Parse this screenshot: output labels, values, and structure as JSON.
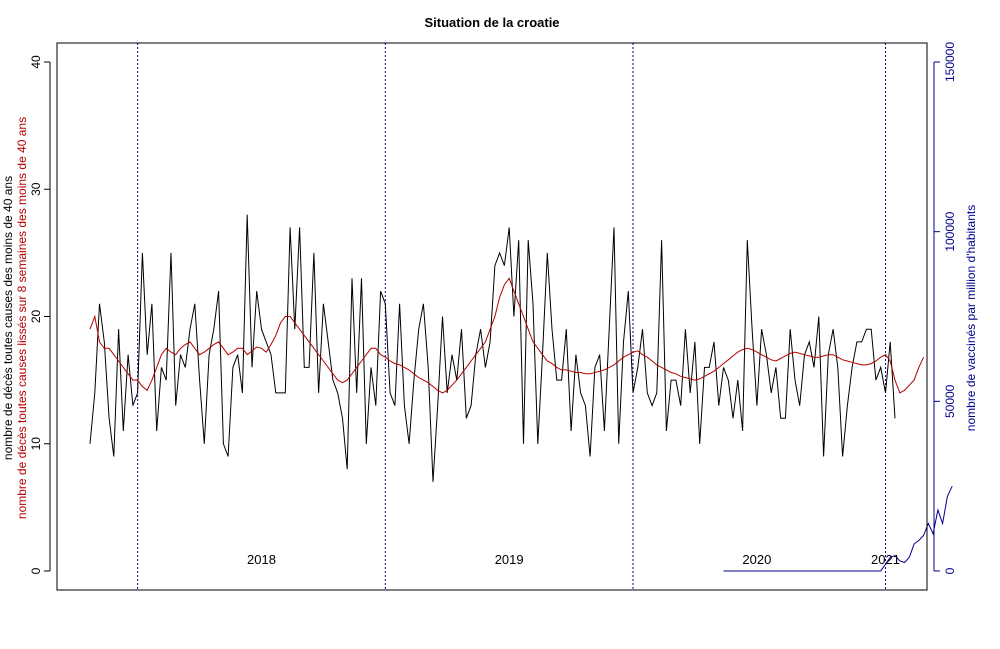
{
  "chart_data": {
    "type": "line",
    "title": "Situation de la croatie",
    "ylabel_left_black": "nombre de décès toutes causes des moins de 40 ans",
    "ylabel_left_red": "nombre de décès toutes causes lissés sur 8 semaines des moins de 40 ans",
    "ylabel_right": "nombre de vaccinés par million d'habitants",
    "x_range_weeks": [
      1,
      170
    ],
    "ylim_left": [
      0,
      40
    ],
    "yticks_left": [
      "0",
      "10",
      "20",
      "30",
      "40"
    ],
    "ylim_right": [
      0,
      150000
    ],
    "yticks_right": [
      "0",
      "50000",
      "100000",
      "150000"
    ],
    "year_boundaries_week": [
      11,
      63,
      115,
      168
    ],
    "year_labels": [
      {
        "label": "2018",
        "week": 37
      },
      {
        "label": "2019",
        "week": 89
      },
      {
        "label": "2020",
        "week": 141
      },
      {
        "label": "2021",
        "week": 168
      }
    ],
    "colors": {
      "deaths": "#000000",
      "smoothed": "#b40000",
      "vaccinated": "#00008b",
      "year_line": "#00008b",
      "ylabel_right": "#00008b"
    },
    "series": [
      {
        "key": "deaths",
        "start_week": 1,
        "values": [
          10,
          14,
          21,
          18,
          12,
          9,
          19,
          11,
          17,
          13,
          14,
          25,
          17,
          21,
          11,
          16,
          15,
          25,
          13,
          17,
          16,
          19,
          21,
          15,
          10,
          17,
          19,
          22,
          10,
          9,
          16,
          17,
          14,
          28,
          16,
          22,
          19,
          18,
          17,
          14,
          14,
          14,
          27,
          19,
          27,
          16,
          16,
          25,
          14,
          21,
          18,
          15,
          14,
          12,
          8,
          23,
          14,
          23,
          10,
          16,
          13,
          22,
          21,
          14,
          13,
          21,
          13,
          10,
          15,
          19,
          21,
          16,
          7,
          13,
          20,
          14,
          17,
          15,
          19,
          12,
          13,
          17,
          19,
          16,
          18,
          24,
          25,
          24,
          27,
          20,
          26,
          10,
          26,
          21,
          10,
          17,
          25,
          19,
          15,
          15,
          19,
          11,
          17,
          14,
          13,
          9,
          16,
          17,
          11,
          19,
          27,
          10,
          18,
          22,
          14,
          16,
          19,
          14,
          13,
          14,
          26,
          11,
          15,
          15,
          13,
          19,
          14,
          18,
          10,
          16,
          16,
          18,
          13,
          16,
          15,
          12,
          15,
          11,
          26,
          19,
          13,
          19,
          17,
          14,
          16,
          12,
          12,
          19,
          15,
          13,
          17,
          18,
          16,
          20,
          9,
          17,
          19,
          16,
          9,
          13,
          16,
          18,
          18,
          19,
          19,
          15,
          16,
          14,
          18,
          12
        ]
      },
      {
        "key": "smoothed",
        "start_week": 1,
        "values": [
          19,
          20,
          18,
          17.5,
          17.5,
          17,
          16.5,
          16,
          15.5,
          15,
          15,
          14.5,
          14.2,
          15,
          16,
          17,
          17.5,
          17.2,
          17,
          17.5,
          17.8,
          18,
          17.5,
          17,
          17.2,
          17.5,
          17.8,
          18,
          17.5,
          17,
          17.2,
          17.5,
          17.5,
          17,
          17.3,
          17.6,
          17.5,
          17.2,
          17.8,
          18.5,
          19.5,
          20,
          20,
          19.5,
          19,
          18.5,
          18,
          17.5,
          17,
          16.5,
          16,
          15.5,
          15,
          14.8,
          15,
          15.5,
          16,
          16.5,
          17,
          17.5,
          17.5,
          17,
          16.8,
          16.5,
          16.3,
          16.2,
          16,
          15.8,
          15.5,
          15.2,
          15,
          14.8,
          14.5,
          14.2,
          14,
          14.2,
          14.6,
          15,
          15.5,
          16,
          16.5,
          17,
          17.5,
          18,
          19,
          20,
          21.5,
          22.5,
          23,
          22,
          21,
          20,
          19,
          18,
          17.5,
          17,
          16.5,
          16.3,
          16,
          15.8,
          15.8,
          15.7,
          15.6,
          15.6,
          15.5,
          15.5,
          15.6,
          15.7,
          15.8,
          16,
          16.2,
          16.5,
          16.8,
          17,
          17.2,
          17.3,
          17,
          16.8,
          16.5,
          16.2,
          16,
          15.8,
          15.6,
          15.5,
          15.3,
          15.2,
          15.1,
          15,
          15.1,
          15.3,
          15.5,
          15.7,
          16,
          16.3,
          16.6,
          16.9,
          17.2,
          17.4,
          17.5,
          17.4,
          17.2,
          17,
          16.8,
          16.6,
          16.5,
          16.7,
          16.9,
          17.1,
          17.2,
          17.1,
          17,
          16.9,
          16.8,
          16.8,
          16.9,
          17,
          17,
          16.8,
          16.6,
          16.5,
          16.4,
          16.3,
          16.2,
          16.2,
          16.3,
          16.5,
          16.8,
          17,
          16.5,
          15,
          14,
          14.2,
          14.6,
          15,
          16,
          16.8
        ]
      },
      {
        "key": "vaccinated",
        "start_week": 134,
        "values": [
          0,
          0,
          0,
          0,
          0,
          0,
          0,
          0,
          0,
          0,
          0,
          0,
          0,
          0,
          0,
          0,
          0,
          0,
          0,
          0,
          0,
          0,
          0,
          0,
          0,
          0,
          0,
          0,
          0,
          0,
          0,
          0,
          0,
          0,
          2000,
          4000,
          4500,
          3000,
          2500,
          4000,
          8000,
          9000,
          10500,
          14000,
          11000,
          18000,
          14000,
          22000,
          25000
        ]
      }
    ]
  }
}
